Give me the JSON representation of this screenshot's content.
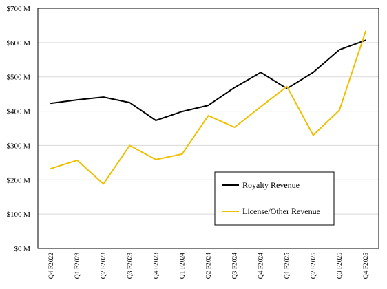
{
  "chart_data": {
    "type": "line",
    "categories": [
      "Q4 F2022",
      "Q1 F2023",
      "Q2 F2023",
      "Q3 F2023",
      "Q4 F2023",
      "Q1 F2024",
      "Q2 F2024",
      "Q3 F2024",
      "Q4 F2024",
      "Q1 F2025",
      "Q2 F2025",
      "Q3 F2025",
      "Q4 F2025"
    ],
    "series": [
      {
        "name": "Royalty Revenue",
        "color": "#000000",
        "values": [
          423,
          433,
          441,
          425,
          373,
          399,
          417,
          469,
          513,
          466,
          513,
          579,
          607
        ]
      },
      {
        "name": "License/Other Revenue",
        "color": "#f0c000",
        "values": [
          233,
          257,
          188,
          300,
          259,
          275,
          387,
          353,
          413,
          472,
          330,
          403,
          633
        ]
      }
    ],
    "y_ticks": [
      "$0 M",
      "$100 M",
      "$200 M",
      "$300 M",
      "$400 M",
      "$500 M",
      "$600 M",
      "$700 M"
    ],
    "ylim": [
      0,
      700
    ],
    "grid": true,
    "legend_position": "inside-lower-right",
    "title": "",
    "xlabel": "",
    "ylabel": ""
  }
}
